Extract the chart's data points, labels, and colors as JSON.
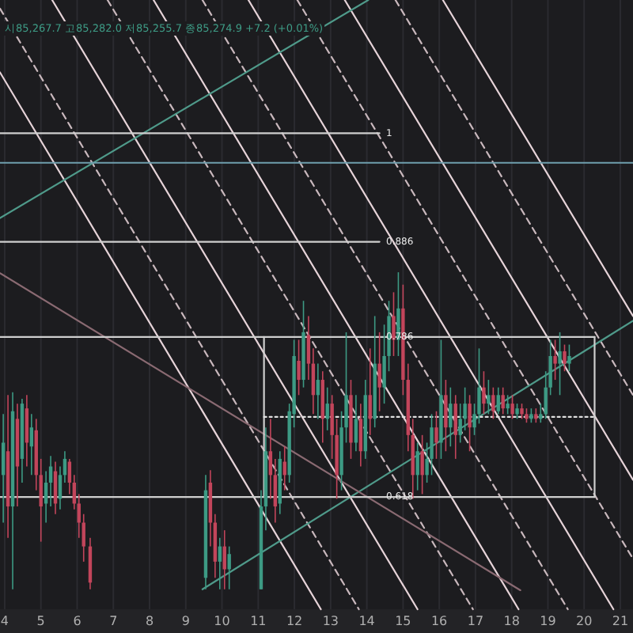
{
  "chart_data": {
    "type": "candlestick",
    "xlim": [
      3.87,
      21.35
    ],
    "xticks": [
      4,
      5,
      6,
      7,
      8,
      9,
      10,
      11,
      12,
      13,
      14,
      15,
      16,
      17,
      18,
      19,
      20,
      21
    ],
    "ylim": [
      0.5,
      1.14
    ],
    "yticks": [
      {
        "value": 0.618,
        "label": "0.618"
      },
      {
        "value": 0.786,
        "label": "0.786"
      },
      {
        "value": 0.886,
        "label": "0.886"
      },
      {
        "value": 1,
        "label": "1"
      }
    ],
    "grid": "x",
    "x": [
      3.96,
      4.09,
      4.22,
      4.35,
      4.48,
      4.61,
      4.74,
      4.87,
      5.0,
      5.14,
      5.27,
      5.4,
      5.53,
      5.66,
      5.79,
      5.92,
      6.05,
      6.18,
      6.36,
      9.55,
      9.68,
      9.81,
      9.94,
      10.07,
      10.2,
      11.08,
      11.21,
      11.34,
      11.47,
      11.6,
      11.73,
      11.86,
      11.99,
      12.12,
      12.25,
      12.39,
      12.52,
      12.65,
      12.78,
      12.91,
      13.04,
      13.17,
      13.3,
      13.43,
      13.56,
      13.7,
      13.83,
      13.96,
      14.09,
      14.22,
      14.35,
      14.48,
      14.61,
      14.74,
      14.87,
      15.0,
      15.14,
      15.27,
      15.4,
      15.53,
      15.66,
      15.79,
      15.92,
      16.05,
      16.18,
      16.31,
      16.45,
      16.58,
      16.71,
      16.84,
      16.97,
      17.1,
      17.23,
      17.36,
      17.49,
      17.63,
      17.76,
      17.89,
      18.02,
      18.15,
      18.28,
      18.41,
      18.54,
      18.67,
      18.8,
      18.94,
      19.07,
      19.2,
      19.33,
      19.46,
      19.59
    ],
    "ohlc": [
      [
        0.641,
        0.705,
        0.591,
        0.675
      ],
      [
        0.666,
        0.725,
        0.575,
        0.608
      ],
      [
        0.608,
        0.728,
        0.521,
        0.708
      ],
      [
        0.7,
        0.716,
        0.608,
        0.65
      ],
      [
        0.658,
        0.721,
        0.633,
        0.716
      ],
      [
        0.711,
        0.725,
        0.65,
        0.675
      ],
      [
        0.671,
        0.705,
        0.641,
        0.691
      ],
      [
        0.688,
        0.7,
        0.625,
        0.641
      ],
      [
        0.641,
        0.658,
        0.571,
        0.608
      ],
      [
        0.611,
        0.645,
        0.591,
        0.633
      ],
      [
        0.633,
        0.661,
        0.608,
        0.65
      ],
      [
        0.645,
        0.655,
        0.6,
        0.611
      ],
      [
        0.616,
        0.65,
        0.605,
        0.641
      ],
      [
        0.641,
        0.666,
        0.633,
        0.658
      ],
      [
        0.655,
        0.658,
        0.621,
        0.633
      ],
      [
        0.633,
        0.641,
        0.605,
        0.611
      ],
      [
        0.611,
        0.621,
        0.575,
        0.591
      ],
      [
        0.591,
        0.6,
        0.55,
        0.566
      ],
      [
        0.566,
        0.575,
        0.521,
        0.528
      ],
      [
        0.533,
        0.641,
        0.521,
        0.625
      ],
      [
        0.633,
        0.646,
        0.566,
        0.591
      ],
      [
        0.591,
        0.6,
        0.533,
        0.55
      ],
      [
        0.55,
        0.575,
        0.521,
        0.566
      ],
      [
        0.566,
        0.583,
        0.521,
        0.542
      ],
      [
        0.542,
        0.566,
        0.521,
        0.558
      ],
      [
        0.521,
        0.625,
        0.521,
        0.608
      ],
      [
        0.608,
        0.691,
        0.583,
        0.666
      ],
      [
        0.666,
        0.7,
        0.616,
        0.641
      ],
      [
        0.641,
        0.658,
        0.591,
        0.608
      ],
      [
        0.611,
        0.666,
        0.6,
        0.658
      ],
      [
        0.655,
        0.671,
        0.625,
        0.641
      ],
      [
        0.641,
        0.716,
        0.633,
        0.708
      ],
      [
        0.705,
        0.783,
        0.691,
        0.766
      ],
      [
        0.761,
        0.783,
        0.725,
        0.741
      ],
      [
        0.741,
        0.824,
        0.733,
        0.791
      ],
      [
        0.788,
        0.808,
        0.741,
        0.758
      ],
      [
        0.758,
        0.774,
        0.705,
        0.725
      ],
      [
        0.725,
        0.758,
        0.7,
        0.741
      ],
      [
        0.741,
        0.75,
        0.675,
        0.7
      ],
      [
        0.7,
        0.733,
        0.688,
        0.716
      ],
      [
        0.716,
        0.725,
        0.658,
        0.683
      ],
      [
        0.683,
        0.7,
        0.616,
        0.641
      ],
      [
        0.641,
        0.708,
        0.625,
        0.691
      ],
      [
        0.691,
        0.791,
        0.675,
        0.725
      ],
      [
        0.725,
        0.741,
        0.658,
        0.675
      ],
      [
        0.675,
        0.725,
        0.666,
        0.7
      ],
      [
        0.7,
        0.716,
        0.65,
        0.666
      ],
      [
        0.666,
        0.741,
        0.658,
        0.725
      ],
      [
        0.725,
        0.774,
        0.683,
        0.7
      ],
      [
        0.7,
        0.808,
        0.691,
        0.758
      ],
      [
        0.758,
        0.791,
        0.708,
        0.733
      ],
      [
        0.733,
        0.799,
        0.716,
        0.766
      ],
      [
        0.766,
        0.824,
        0.75,
        0.808
      ],
      [
        0.808,
        0.833,
        0.766,
        0.783
      ],
      [
        0.783,
        0.854,
        0.766,
        0.816
      ],
      [
        0.816,
        0.841,
        0.725,
        0.741
      ],
      [
        0.741,
        0.758,
        0.666,
        0.683
      ],
      [
        0.683,
        0.7,
        0.616,
        0.641
      ],
      [
        0.641,
        0.675,
        0.625,
        0.666
      ],
      [
        0.666,
        0.683,
        0.621,
        0.641
      ],
      [
        0.641,
        0.675,
        0.633,
        0.658
      ],
      [
        0.658,
        0.705,
        0.641,
        0.691
      ],
      [
        0.691,
        0.708,
        0.658,
        0.675
      ],
      [
        0.675,
        0.783,
        0.658,
        0.725
      ],
      [
        0.725,
        0.741,
        0.666,
        0.691
      ],
      [
        0.691,
        0.733,
        0.671,
        0.716
      ],
      [
        0.716,
        0.725,
        0.658,
        0.683
      ],
      [
        0.683,
        0.716,
        0.675,
        0.7
      ],
      [
        0.7,
        0.733,
        0.688,
        0.716
      ],
      [
        0.716,
        0.725,
        0.666,
        0.691
      ],
      [
        0.691,
        0.716,
        0.683,
        0.705
      ],
      [
        0.705,
        0.774,
        0.695,
        0.733
      ],
      [
        0.733,
        0.75,
        0.705,
        0.716
      ],
      [
        0.716,
        0.741,
        0.705,
        0.725
      ],
      [
        0.725,
        0.733,
        0.7,
        0.708
      ],
      [
        0.708,
        0.733,
        0.705,
        0.725
      ],
      [
        0.725,
        0.733,
        0.705,
        0.711
      ],
      [
        0.711,
        0.725,
        0.705,
        0.716
      ],
      [
        0.716,
        0.725,
        0.7,
        0.705
      ],
      [
        0.705,
        0.716,
        0.7,
        0.711
      ],
      [
        0.711,
        0.716,
        0.7,
        0.705
      ],
      [
        0.705,
        0.711,
        0.696,
        0.7
      ],
      [
        0.7,
        0.711,
        0.696,
        0.705
      ],
      [
        0.705,
        0.711,
        0.696,
        0.7
      ],
      [
        0.7,
        0.716,
        0.696,
        0.705
      ],
      [
        0.705,
        0.75,
        0.7,
        0.733
      ],
      [
        0.733,
        0.783,
        0.725,
        0.766
      ],
      [
        0.766,
        0.783,
        0.741,
        0.758
      ],
      [
        0.758,
        0.791,
        0.725,
        0.771
      ],
      [
        0.771,
        0.778,
        0.75,
        0.758
      ],
      [
        0.758,
        0.778,
        0.75,
        0.766
      ]
    ],
    "colors": [
      "#3d9a84",
      "#c2455b",
      "#3d9a84",
      "#c2455b",
      "#3d9a84",
      "#c2455b",
      "#3d9a84",
      "#c2455b",
      "#c2455b",
      "#3d9a84",
      "#3d9a84",
      "#c2455b",
      "#3d9a84",
      "#3d9a84",
      "#c2455b",
      "#c2455b",
      "#c2455b",
      "#c2455b",
      "#c2455b",
      "#3d9a84",
      "#c2455b",
      "#c2455b",
      "#3d9a84",
      "#c2455b",
      "#3d9a84",
      "#3d9a84",
      "#3d9a84",
      "#c2455b",
      "#c2455b",
      "#3d9a84",
      "#c2455b",
      "#3d9a84",
      "#3d9a84",
      "#c2455b",
      "#3d9a84",
      "#c2455b",
      "#c2455b",
      "#3d9a84",
      "#c2455b",
      "#3d9a84",
      "#c2455b",
      "#c2455b",
      "#3d9a84",
      "#3d9a84",
      "#c2455b",
      "#3d9a84",
      "#c2455b",
      "#3d9a84",
      "#c2455b",
      "#3d9a84",
      "#c2455b",
      "#3d9a84",
      "#3d9a84",
      "#c2455b",
      "#3d9a84",
      "#c2455b",
      "#c2455b",
      "#c2455b",
      "#3d9a84",
      "#c2455b",
      "#3d9a84",
      "#3d9a84",
      "#c2455b",
      "#3d9a84",
      "#c2455b",
      "#3d9a84",
      "#c2455b",
      "#3d9a84",
      "#3d9a84",
      "#c2455b",
      "#3d9a84",
      "#3d9a84",
      "#c2455b",
      "#3d9a84",
      "#c2455b",
      "#3d9a84",
      "#c2455b",
      "#3d9a84",
      "#c2455b",
      "#3d9a84",
      "#c2455b",
      "#c2455b",
      "#3d9a84",
      "#c2455b",
      "#3d9a84",
      "#3d9a84",
      "#3d9a84",
      "#c2455b",
      "#3d9a84",
      "#c2455b",
      "#3d9a84"
    ],
    "series": [
      {
        "type": "line",
        "x": [
          3.87,
          12.73
        ],
        "values": [
          1.064,
          0.5
        ],
        "color": "#e6d3d8",
        "line_style": "solid"
      },
      {
        "type": "line",
        "x": [
          5.31,
          15.4
        ],
        "values": [
          1.14,
          0.5
        ],
        "color": "#e6d3d8",
        "line_style": "solid"
      },
      {
        "type": "line",
        "x": [
          8.11,
          18.19
        ],
        "values": [
          1.14,
          0.5
        ],
        "color": "#e6d3d8",
        "line_style": "solid"
      },
      {
        "type": "line",
        "x": [
          10.73,
          20.81
        ],
        "values": [
          1.14,
          0.5
        ],
        "color": "#e6d3d8",
        "line_style": "solid"
      },
      {
        "type": "line",
        "x": [
          13.39,
          21.35
        ],
        "values": [
          1.14,
          0.636
        ],
        "color": "#e6d3d8",
        "line_style": "solid"
      },
      {
        "type": "line",
        "x": [
          16.1,
          21.35
        ],
        "values": [
          1.14,
          0.808
        ],
        "color": "#e6d3d8",
        "line_style": "solid"
      },
      {
        "type": "line",
        "x": [
          3.87,
          13.78
        ],
        "values": [
          1.131,
          0.5
        ],
        "color": "#c9b8bd",
        "line_style": "dashed"
      },
      {
        "type": "line",
        "x": [
          6.84,
          16.93
        ],
        "values": [
          1.14,
          0.5
        ],
        "color": "#c9b8bd",
        "line_style": "dashed"
      },
      {
        "type": "line",
        "x": [
          9.46,
          19.55
        ],
        "values": [
          1.14,
          0.5
        ],
        "color": "#c9b8bd",
        "line_style": "dashed"
      },
      {
        "type": "line",
        "x": [
          12.08,
          21.35
        ],
        "values": [
          1.14,
          0.553
        ],
        "color": "#c9b8bd",
        "line_style": "dashed"
      },
      {
        "type": "line",
        "x": [
          14.79,
          21.35
        ],
        "values": [
          1.14,
          0.725
        ],
        "color": "#c9b8bd",
        "line_style": "dashed"
      },
      {
        "type": "line",
        "x": [
          3.87,
          14.04
        ],
        "values": [
          0.911,
          1.14
        ],
        "color": "#4f9a8a",
        "line_style": "solid"
      },
      {
        "type": "line",
        "x": [
          9.46,
          21.35
        ],
        "values": [
          0.521,
          0.803
        ],
        "color": "#4f9a8a",
        "line_style": "solid"
      },
      {
        "type": "line",
        "x": [
          3.87,
          18.24
        ],
        "values": [
          0.853,
          0.52
        ],
        "color": "#8a6a72",
        "line_style": "solid"
      },
      {
        "type": "line",
        "x": [
          3.87,
          14.35
        ],
        "values": [
          1,
          1
        ],
        "color": "#cfcfcf",
        "line_style": "solid"
      },
      {
        "type": "line",
        "x": [
          3.87,
          21.35
        ],
        "values": [
          0.969,
          0.969
        ],
        "color": "#6f9fae",
        "line_style": "solid"
      },
      {
        "type": "line",
        "x": [
          3.87,
          14.35
        ],
        "values": [
          0.886,
          0.886
        ],
        "color": "#cfcfcf",
        "line_style": "solid"
      },
      {
        "type": "line",
        "x": [
          3.87,
          20.29
        ],
        "values": [
          0.786,
          0.786
        ],
        "color": "#cfcfcf",
        "line_style": "solid"
      },
      {
        "type": "line",
        "x": [
          3.87,
          20.29
        ],
        "values": [
          0.618,
          0.618
        ],
        "color": "#cfcfcf",
        "line_style": "solid"
      },
      {
        "type": "line",
        "x": [
          11.16,
          11.16
        ],
        "values": [
          0.618,
          0.786
        ],
        "color": "#cfcfcf",
        "line_style": "solid"
      },
      {
        "type": "line",
        "x": [
          20.29,
          20.29
        ],
        "values": [
          0.618,
          0.786
        ],
        "color": "#cfcfcf",
        "line_style": "solid"
      },
      {
        "type": "line",
        "x": [
          11.16,
          20.29
        ],
        "values": [
          0.702,
          0.702
        ],
        "color": "#e0e0e0",
        "line_style": "dotted"
      }
    ],
    "annotations": [
      "시85,267.7 고85,282.0 저85,255.7 종85,274.9 +7.2 (+0.01%)"
    ]
  }
}
